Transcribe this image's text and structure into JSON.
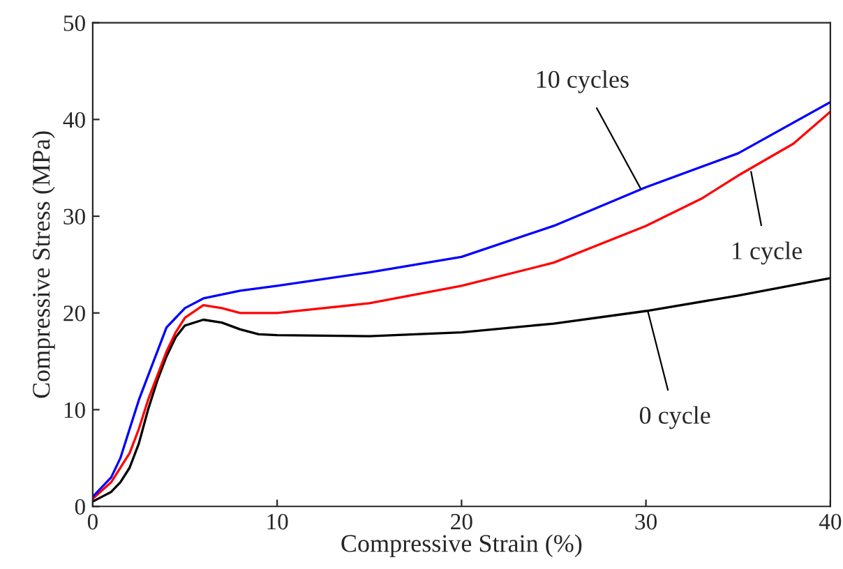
{
  "chart_data": {
    "type": "line",
    "xlabel": "Compressive Strain (%)",
    "ylabel": "Compressive Stress (MPa)",
    "xlim": [
      0,
      40
    ],
    "xticks": [
      0,
      10,
      20,
      30,
      40
    ],
    "ylim": [
      0,
      50
    ],
    "yticks": [
      0,
      10,
      20,
      30,
      40,
      50
    ],
    "grid": false,
    "legend": false,
    "marker": "none",
    "line_style": "solid",
    "series": [
      {
        "color": "#000000",
        "x": [
          0,
          0.5,
          1,
          1.5,
          2,
          2.5,
          3,
          3.5,
          4,
          4.5,
          5,
          6,
          7,
          8,
          9,
          10,
          15,
          20,
          25,
          30,
          35,
          40
        ],
        "values": [
          0.5,
          1,
          1.5,
          2.5,
          4,
          6.5,
          10,
          13,
          15.5,
          17.5,
          18.7,
          19.3,
          19,
          18.3,
          17.8,
          17.7,
          17.6,
          18,
          18.9,
          20.2,
          21.8,
          23.6
        ]
      },
      {
        "color": "#ff0000",
        "x": [
          0,
          1,
          2,
          2.5,
          3,
          3.5,
          4,
          4.5,
          5,
          6,
          7,
          8,
          10,
          15,
          20,
          25,
          30,
          33,
          35,
          38,
          40
        ],
        "values": [
          0.8,
          2.5,
          5.5,
          8,
          11,
          13.5,
          16,
          18,
          19.5,
          20.8,
          20.5,
          20,
          20,
          21,
          22.8,
          25.2,
          29,
          31.8,
          34.2,
          37.5,
          40.8
        ]
      },
      {
        "color": "#0000ff",
        "x": [
          0,
          1,
          1.5,
          2,
          2.5,
          3,
          3.5,
          4,
          4.5,
          5,
          6,
          8,
          10,
          15,
          20,
          25,
          30,
          35,
          40
        ],
        "values": [
          1,
          3,
          5,
          8,
          11,
          13.5,
          16,
          18.5,
          19.5,
          20.5,
          21.5,
          22.3,
          22.8,
          24.2,
          25.8,
          29,
          33,
          36.5,
          41.8
        ]
      }
    ],
    "annotations": [
      {
        "text": "10 cycles",
        "x": 29.7,
        "y": 32.9
      },
      {
        "text": "1 cycle",
        "x": 35.7,
        "y": 34.6
      },
      {
        "text": "0 cycle",
        "x": 30.1,
        "y": 20.2
      }
    ]
  }
}
